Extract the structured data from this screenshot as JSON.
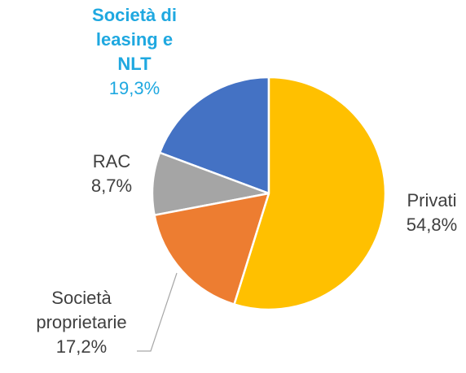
{
  "chart_data": {
    "type": "pie",
    "categories": [
      "Privati",
      "Società proprietarie",
      "RAC",
      "Società di leasing e NLT"
    ],
    "values": [
      54.8,
      17.2,
      8.7,
      19.3
    ],
    "value_labels": [
      "54,8%",
      "17,2%",
      "8,7%",
      "19,3%"
    ],
    "colors": [
      "#FFC000",
      "#ED7D31",
      "#A5A5A5",
      "#4472C4"
    ]
  }
}
